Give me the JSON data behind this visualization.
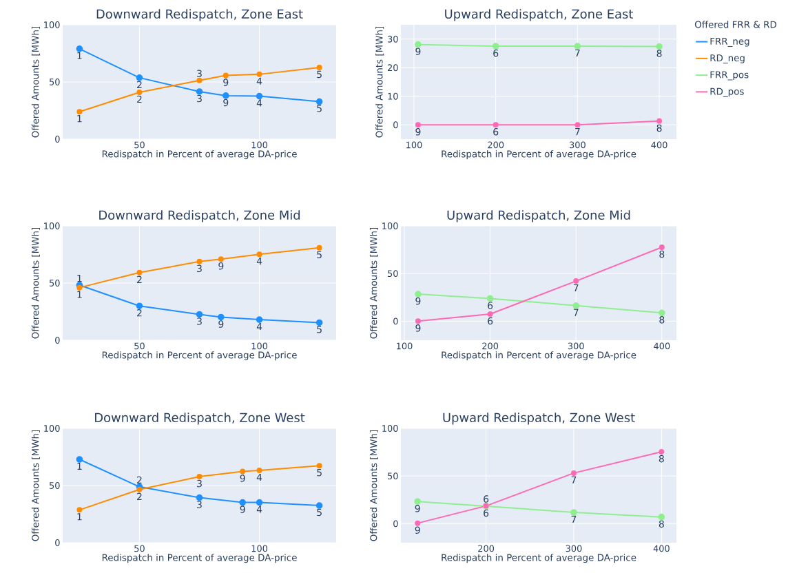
{
  "chart_data": [
    {
      "type": "line",
      "title": "Downward Redispatch, Zone East",
      "xlabel": "Redispatch in Percent of average DA-price",
      "ylabel": "Offered Amounts [MWh]",
      "xlim": [
        18,
        132
      ],
      "xticks": [
        50,
        100
      ],
      "ylim": [
        0,
        100
      ],
      "yticks": [
        0,
        50,
        100
      ],
      "grid": true,
      "marker": "circle",
      "line_style": "solid",
      "series": [
        {
          "name": "FRR_neg",
          "color": "#1e90ff",
          "x": [
            25,
            50,
            75,
            86,
            100,
            125
          ],
          "values": [
            79,
            53.7,
            41.6,
            38,
            37.6,
            32.8
          ]
        },
        {
          "name": "RD_neg",
          "color": "#ff8c00",
          "x": [
            25,
            50,
            75,
            86,
            100,
            125
          ],
          "values": [
            23.9,
            41,
            51.3,
            55.7,
            56.7,
            62.6
          ]
        }
      ],
      "annotations": [
        {
          "text": "1",
          "x": 25,
          "y": 79
        },
        {
          "text": "2",
          "x": 50,
          "y": 53.7
        },
        {
          "text": "3",
          "x": 75,
          "y": 41.6
        },
        {
          "text": "9",
          "x": 86,
          "y": 38
        },
        {
          "text": "4",
          "x": 100,
          "y": 37.6
        },
        {
          "text": "5",
          "x": 125,
          "y": 32.8
        },
        {
          "text": "1",
          "x": 25,
          "y": 23.9
        },
        {
          "text": "2",
          "x": 50,
          "y": 41
        },
        {
          "text": "3",
          "x": 75,
          "y": 51.3
        },
        {
          "text": "9",
          "x": 86,
          "y": 55.7
        },
        {
          "text": "4",
          "x": 100,
          "y": 56.7
        },
        {
          "text": "5",
          "x": 125,
          "y": 62.6
        }
      ]
    },
    {
      "type": "line",
      "title": "Upward Redispatch, Zone East",
      "xlabel": "Redispatch in Percent of average DA-price",
      "ylabel": "Offered Amounts [MWh]",
      "xlim": [
        84,
        421
      ],
      "xticks": [
        100,
        200,
        300,
        400
      ],
      "ylim": [
        -5,
        35
      ],
      "yticks": [
        0,
        10,
        20,
        30
      ],
      "grid": true,
      "marker": "circle",
      "line_style": "solid",
      "legend": "right",
      "legend_title": "Offered FRR & RD",
      "series": [
        {
          "name": "FRR_pos",
          "color": "#90ee90",
          "x": [
            105,
            200,
            300,
            400
          ],
          "values": [
            28.1,
            27.5,
            27.5,
            27.4
          ]
        },
        {
          "name": "RD_pos",
          "color": "#ff69b4",
          "x": [
            105,
            200,
            300,
            400
          ],
          "values": [
            0,
            0,
            0,
            1.3
          ]
        }
      ],
      "annotations": [
        {
          "text": "9",
          "x": 105,
          "y": 28.1
        },
        {
          "text": "6",
          "x": 200,
          "y": 27.5
        },
        {
          "text": "7",
          "x": 300,
          "y": 27.5
        },
        {
          "text": "8",
          "x": 400,
          "y": 27.4
        },
        {
          "text": "9",
          "x": 105,
          "y": 0
        },
        {
          "text": "6",
          "x": 200,
          "y": 0
        },
        {
          "text": "7",
          "x": 300,
          "y": 0
        },
        {
          "text": "8",
          "x": 400,
          "y": 1.3
        }
      ]
    },
    {
      "type": "line",
      "title": "Downward Redispatch, Zone Mid",
      "xlabel": "Redispatch in Percent of average DA-price",
      "ylabel": "Offered Amounts [MWh]",
      "xlim": [
        18,
        132
      ],
      "xticks": [
        50,
        100
      ],
      "ylim": [
        0,
        100
      ],
      "yticks": [
        0,
        50,
        100
      ],
      "grid": true,
      "marker": "circle",
      "line_style": "solid",
      "series": [
        {
          "color": "#1e90ff",
          "x": [
            25,
            50,
            75,
            84,
            100,
            125
          ],
          "values": [
            48.2,
            30,
            22.6,
            20.2,
            18,
            15.4
          ]
        },
        {
          "color": "#ff8c00",
          "x": [
            25,
            50,
            75,
            84,
            100,
            125
          ],
          "values": [
            46,
            59.2,
            68.8,
            71,
            75.2,
            80.8
          ]
        }
      ],
      "annotations": [
        {
          "text": "1",
          "x": 25,
          "y": 48.2
        },
        {
          "text": "2",
          "x": 50,
          "y": 30
        },
        {
          "text": "3",
          "x": 75,
          "y": 22.6
        },
        {
          "text": "9",
          "x": 84,
          "y": 20.2
        },
        {
          "text": "4",
          "x": 100,
          "y": 18
        },
        {
          "text": "5",
          "x": 125,
          "y": 15.4
        },
        {
          "text": "1",
          "x": 25,
          "y": 46
        },
        {
          "text": "2",
          "x": 50,
          "y": 59.2
        },
        {
          "text": "3",
          "x": 75,
          "y": 68.8
        },
        {
          "text": "9",
          "x": 84,
          "y": 71
        },
        {
          "text": "4",
          "x": 100,
          "y": 75.2
        },
        {
          "text": "5",
          "x": 125,
          "y": 80.8
        }
      ]
    },
    {
      "type": "line",
      "title": "Upward Redispatch, Zone Mid",
      "xlabel": "Redispatch in Percent of average DA-price",
      "ylabel": "Offered Amounts [MWh]",
      "xlim": [
        96,
        417
      ],
      "xticks": [
        100,
        200,
        300,
        400
      ],
      "ylim": [
        -20,
        100
      ],
      "yticks": [
        0,
        50,
        100
      ],
      "grid": true,
      "marker": "circle",
      "line_style": "solid",
      "series": [
        {
          "color": "#90ee90",
          "x": [
            116,
            200,
            300,
            400
          ],
          "values": [
            28.4,
            23.8,
            16.3,
            8.7
          ]
        },
        {
          "color": "#ff69b4",
          "x": [
            116,
            200,
            300,
            400
          ],
          "values": [
            0,
            7.5,
            42.1,
            77.6
          ]
        }
      ],
      "annotations": [
        {
          "text": "9",
          "x": 116,
          "y": 28.4
        },
        {
          "text": "6",
          "x": 200,
          "y": 23.8
        },
        {
          "text": "7",
          "x": 300,
          "y": 16.3
        },
        {
          "text": "8",
          "x": 400,
          "y": 8.7
        },
        {
          "text": "9",
          "x": 116,
          "y": 0
        },
        {
          "text": "6",
          "x": 200,
          "y": 7.5
        },
        {
          "text": "7",
          "x": 300,
          "y": 42.1
        },
        {
          "text": "8",
          "x": 400,
          "y": 77.6
        }
      ]
    },
    {
      "type": "line",
      "title": "Downward Redispatch, Zone West",
      "xlabel": "Redispatch in Percent of average DA-price",
      "ylabel": "Offered Amounts [MWh]",
      "xlim": [
        18,
        132
      ],
      "xticks": [
        50,
        100
      ],
      "ylim": [
        0,
        100
      ],
      "yticks": [
        0,
        50,
        100
      ],
      "grid": true,
      "marker": "circle",
      "line_style": "solid",
      "series": [
        {
          "color": "#1e90ff",
          "x": [
            25,
            50,
            75,
            93,
            100,
            125
          ],
          "values": [
            72.9,
            48.9,
            39.4,
            35.2,
            35.2,
            32.5
          ]
        },
        {
          "color": "#ff8c00",
          "x": [
            25,
            50,
            75,
            93,
            100,
            125
          ],
          "values": [
            28.7,
            46.5,
            57.8,
            62.4,
            63.2,
            67.3
          ]
        }
      ],
      "annotations": [
        {
          "text": "1",
          "x": 25,
          "y": 72.9
        },
        {
          "text": "2",
          "x": 50,
          "y": 48.9
        },
        {
          "text": "3",
          "x": 75,
          "y": 39.4
        },
        {
          "text": "9",
          "x": 93,
          "y": 35.2
        },
        {
          "text": "4",
          "x": 100,
          "y": 35.2
        },
        {
          "text": "5",
          "x": 125,
          "y": 32.5
        },
        {
          "text": "1",
          "x": 25,
          "y": 28.7
        },
        {
          "text": "2",
          "x": 50,
          "y": 46.5
        },
        {
          "text": "3",
          "x": 75,
          "y": 57.8
        },
        {
          "text": "9",
          "x": 93,
          "y": 62.4
        },
        {
          "text": "4",
          "x": 100,
          "y": 63.2
        },
        {
          "text": "5",
          "x": 125,
          "y": 67.3
        }
      ]
    },
    {
      "type": "line",
      "title": "Upward Redispatch, Zone West",
      "xlabel": "Redispatch in Percent of average DA-price",
      "ylabel": "Offered Amounts [MWh]",
      "xlim": [
        103,
        417
      ],
      "xticks": [
        200,
        300,
        400
      ],
      "ylim": [
        -20,
        100
      ],
      "yticks": [
        0,
        50,
        100
      ],
      "grid": true,
      "marker": "circle",
      "line_style": "solid",
      "series": [
        {
          "color": "#90ee90",
          "x": [
            122,
            200,
            300,
            400
          ],
          "values": [
            23.2,
            18.4,
            11.8,
            7
          ]
        },
        {
          "color": "#ff69b4",
          "x": [
            122,
            200,
            300,
            400
          ],
          "values": [
            0.5,
            18.6,
            53.1,
            75.4
          ]
        }
      ],
      "annotations": [
        {
          "text": "9",
          "x": 122,
          "y": 23.2
        },
        {
          "text": "6",
          "x": 200,
          "y": 18.4
        },
        {
          "text": "7",
          "x": 300,
          "y": 11.8
        },
        {
          "text": "8",
          "x": 400,
          "y": 7
        },
        {
          "text": "9",
          "x": 122,
          "y": 0.5
        },
        {
          "text": "6",
          "x": 200,
          "y": 18.6
        },
        {
          "text": "7",
          "x": 300,
          "y": 53.1
        },
        {
          "text": "8",
          "x": 400,
          "y": 75.4
        }
      ]
    }
  ]
}
